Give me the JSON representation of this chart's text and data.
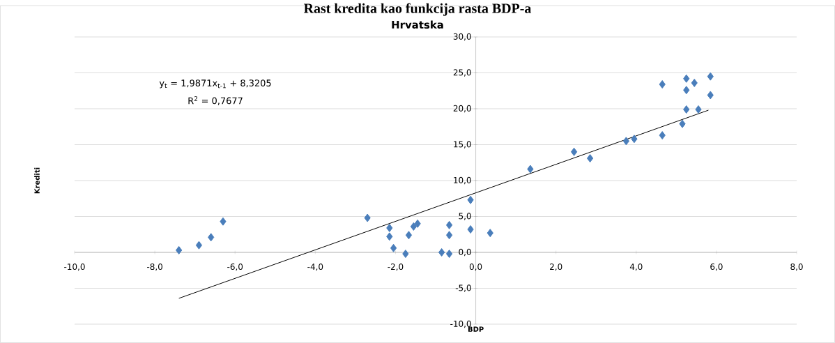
{
  "chart_data": {
    "type": "scatter",
    "title": "Rast kredita kao funkcija rasta BDP-a",
    "subtitle": "Hrvatska",
    "xlabel": "BDP",
    "ylabel": "Krediti",
    "annotations": [
      "y$_{t}$ = 1,9871x$_{t-1}$ + 8,3205",
      "R$^{2}$ = 0,7677"
    ],
    "xlim": [
      -10,
      8
    ],
    "ylim": [
      -10,
      30
    ],
    "xticks": [
      {
        "value": -10,
        "label": "-10,0"
      },
      {
        "value": -8,
        "label": "-8,0"
      },
      {
        "value": -6,
        "label": "-6,0"
      },
      {
        "value": -4,
        "label": "-4,0"
      },
      {
        "value": -2,
        "label": "-2,0"
      },
      {
        "value": 0,
        "label": "0,0"
      },
      {
        "value": 2,
        "label": "2,0"
      },
      {
        "value": 4,
        "label": "4,0"
      },
      {
        "value": 6,
        "label": "6,0"
      },
      {
        "value": 8,
        "label": "8,0"
      }
    ],
    "yticks": [
      {
        "value": -10,
        "label": "-10,0"
      },
      {
        "value": -5,
        "label": "-5,0"
      },
      {
        "value": 0,
        "label": "0,0"
      },
      {
        "value": 5,
        "label": "5,0"
      },
      {
        "value": 10,
        "label": "10,0"
      },
      {
        "value": 15,
        "label": "15,0"
      },
      {
        "value": 20,
        "label": "20,0"
      },
      {
        "value": 25,
        "label": "25,0"
      },
      {
        "value": 30,
        "label": "30,0"
      }
    ],
    "grid": "y",
    "marker": "diamond",
    "series": [
      {
        "color": "#4a7ebb",
        "x": [
          -7.4,
          -6.9,
          -6.6,
          -6.3,
          -2.7,
          -2.15,
          -2.15,
          -2.05,
          -1.75,
          -1.67,
          -1.55,
          -1.45,
          -0.66,
          -0.66,
          -0.66,
          -0.85,
          -0.13,
          -0.13,
          0.36,
          1.36,
          2.45,
          2.85,
          3.75,
          3.95,
          4.65,
          4.65,
          5.15,
          5.25,
          5.55,
          5.25,
          5.25,
          5.45,
          5.85,
          5.85
        ],
        "values": [
          0.3,
          1.0,
          2.1,
          4.3,
          4.8,
          3.4,
          2.2,
          0.6,
          -0.2,
          2.4,
          3.6,
          4.0,
          3.8,
          2.4,
          -0.2,
          0.0,
          7.3,
          3.2,
          2.7,
          11.6,
          14.0,
          13.1,
          15.5,
          15.8,
          16.3,
          23.4,
          17.9,
          19.9,
          19.9,
          22.6,
          24.2,
          23.6,
          24.5,
          21.9
        ]
      },
      {
        "type": "line",
        "color": "#000000",
        "marker": "none",
        "x": [
          -7.4,
          5.8
        ],
        "values": [
          -6.4,
          19.8
        ]
      }
    ]
  }
}
